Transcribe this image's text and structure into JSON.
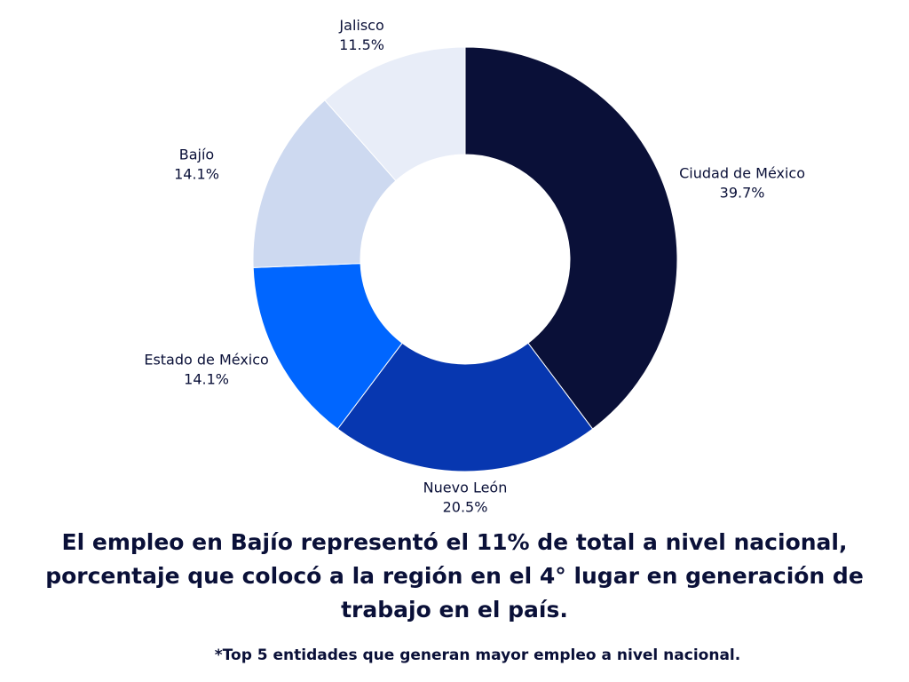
{
  "chart_data": {
    "type": "donut",
    "categories": [
      "Ciudad de México",
      "Nuevo León",
      "Estado de México",
      "Bajío",
      "Jalisco"
    ],
    "values": [
      39.7,
      20.5,
      14.1,
      14.1,
      11.5
    ],
    "value_labels": [
      "39.7%",
      "20.5%",
      "14.1%",
      "14.1%",
      "11.5%"
    ],
    "colors": [
      "#0a1038",
      "#0737b0",
      "#0066ff",
      "#cdd9f0",
      "#e8edf8"
    ]
  },
  "caption": "El empleo en Bajío representó el 11% de total a nivel nacional, porcentaje que colocó a la región en el 4° lugar en generación de trabajo en el país.",
  "footnote": "*Top 5 entidades que generan mayor empleo a nivel nacional."
}
